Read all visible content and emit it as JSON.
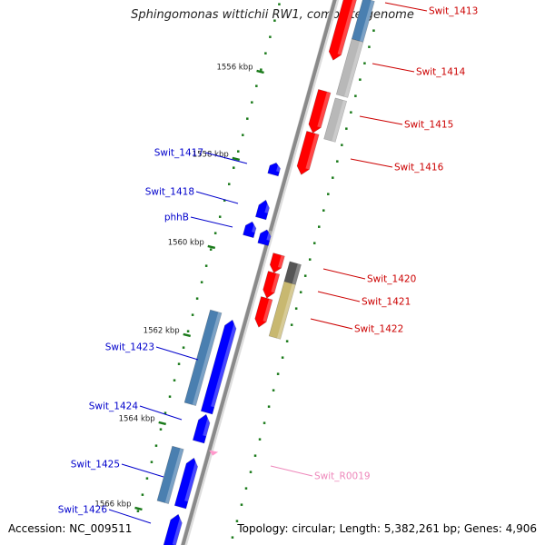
{
  "title": "Sphingomonas wittichii RW1, complete genome",
  "accession": "Accession: NC_009511",
  "topology_info": "Topology: circular; Length: 5,382,261 bp; Genes: 4,906",
  "colors": {
    "backbone": "#888888",
    "tick": "#1a7a1a",
    "forward_gene": "#ff0000",
    "reverse_gene": "#0000ff",
    "forward_label": "#cc0000",
    "reverse_label": "#0000cc",
    "rna": "#ff99cc",
    "rna_label": "#ee88bb",
    "cds_gray": "#b8b8b8",
    "cds_dark": "#555555",
    "cds_olive": "#c8b870",
    "cds_steel": "#4a7fb0"
  },
  "ticks": [
    "1556 kbp",
    "1558 kbp",
    "1560 kbp",
    "1562 kbp",
    "1564 kbp",
    "1566 kbp"
  ],
  "forward_genes": [
    "Swit_1413",
    "Swit_1414",
    "Swit_1415",
    "Swit_1416",
    "Swit_1420",
    "Swit_1421",
    "Swit_1422"
  ],
  "reverse_genes": [
    "Swit_1417",
    "Swit_1418",
    "phhB",
    "Swit_1423",
    "Swit_1424",
    "Swit_1425",
    "Swit_1426"
  ],
  "rna_genes": [
    "Swit_R0019"
  ]
}
